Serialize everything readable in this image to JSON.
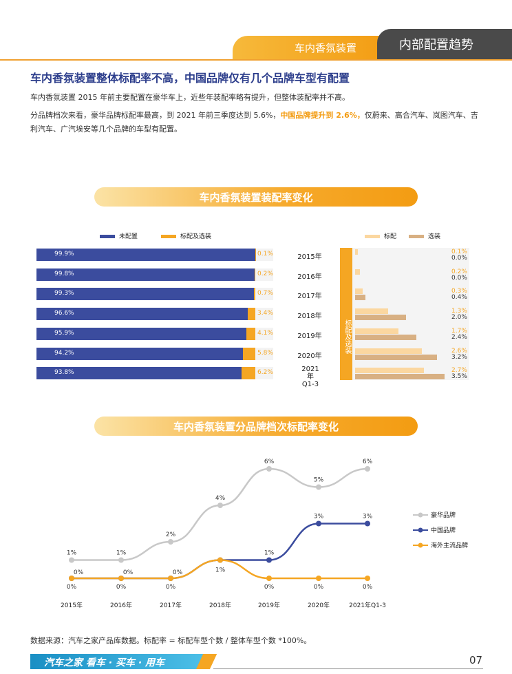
{
  "header": {
    "section": "车内香氛装置",
    "category": "内部配置趋势"
  },
  "title": "车内香氛装置整体标配率不高，中国品牌仅有几个品牌车型有配置",
  "para1": "车内香氛装置 2015 年前主要配置在豪华车上，近些年装配率略有提升，但整体装配率并不高。",
  "para2_a": "分品牌档次来看，豪华品牌标配率最高，到 2021 年前三季度达到 5.6%，",
  "para2_hl": "中国品牌提升到 2.6%，",
  "para2_b": "仅蔚来、高合汽车、岚图汽车、吉利汽车、广汽埃安等几个品牌的车型有配置。",
  "chart1_banner": "车内香氛装置装配率变化",
  "chart2_banner": "车内香氛装置分品牌档次标配率变化",
  "legend1": [
    "未配置",
    "标配及选装"
  ],
  "legend2": [
    "标配",
    "选装"
  ],
  "side_label": "标配及选装",
  "colors": {
    "blue": "#3b4c9e",
    "orange": "#f5a623",
    "std": "#fbd7a0",
    "opt": "#d8b083",
    "gray": "#c8c8c8"
  },
  "chart_data": [
    {
      "type": "bar",
      "categories": [
        "2015年",
        "2016年",
        "2017年",
        "2018年",
        "2019年",
        "2020年",
        "2021年 Q1-3"
      ],
      "series": [
        {
          "name": "未配置",
          "values": [
            99.9,
            99.8,
            99.3,
            96.6,
            95.9,
            94.2,
            93.8
          ],
          "labels": [
            "99.9%",
            "99.8%",
            "99.3%",
            "96.6%",
            "95.9%",
            "94.2%",
            "93.8%"
          ]
        },
        {
          "name": "标配及选装",
          "values": [
            0.1,
            0.2,
            0.7,
            3.4,
            4.1,
            5.8,
            6.2
          ],
          "labels": [
            "0.1%",
            "0.2%",
            "0.7%",
            "3.4%",
            "4.1%",
            "5.8%",
            "6.2%"
          ]
        }
      ]
    },
    {
      "type": "bar",
      "categories": [
        "2015年",
        "2016年",
        "2017年",
        "2018年",
        "2019年",
        "2020年",
        "2021年 Q1-3"
      ],
      "series": [
        {
          "name": "标配",
          "values": [
            0.1,
            0.2,
            0.3,
            1.3,
            1.7,
            2.6,
            2.7
          ],
          "labels": [
            "0.1%",
            "0.2%",
            "0.3%",
            "1.3%",
            "1.7%",
            "2.6%",
            "2.7%"
          ]
        },
        {
          "name": "选装",
          "values": [
            0.0,
            0.0,
            0.4,
            2.0,
            2.4,
            3.2,
            3.5
          ],
          "labels": [
            "0.0%",
            "0.0%",
            "0.4%",
            "2.0%",
            "2.4%",
            "3.2%",
            "3.5%"
          ]
        }
      ]
    },
    {
      "type": "line",
      "categories": [
        "2015年",
        "2016年",
        "2017年",
        "2018年",
        "2019年",
        "2020年",
        "2021年Q1-3"
      ],
      "series": [
        {
          "name": "豪华品牌",
          "values": [
            1,
            1,
            2,
            4,
            6,
            5,
            6
          ],
          "labels": [
            "1%",
            "1%",
            "2%",
            "4%",
            "6%",
            "5%",
            "6%"
          ]
        },
        {
          "name": "中国品牌",
          "values": [
            0,
            0,
            0,
            1,
            1,
            3,
            3
          ],
          "labels": [
            "0%",
            "0%",
            "0%",
            "1%",
            "1%",
            "3%",
            "3%"
          ]
        },
        {
          "name": "海外主流品牌",
          "values": [
            0,
            0,
            0,
            1,
            0,
            0,
            0
          ],
          "labels": [
            "0%",
            "0%",
            "0%",
            "1%",
            "0%",
            "0%",
            "0%"
          ]
        }
      ]
    }
  ],
  "source": "数据来源：汽车之家产品库数据。标配率 = 标配车型个数 / 整体车型个数 *100%。",
  "footer": {
    "brand": "汽车之家 看车 · 买车 · 用车",
    "page": "07"
  }
}
